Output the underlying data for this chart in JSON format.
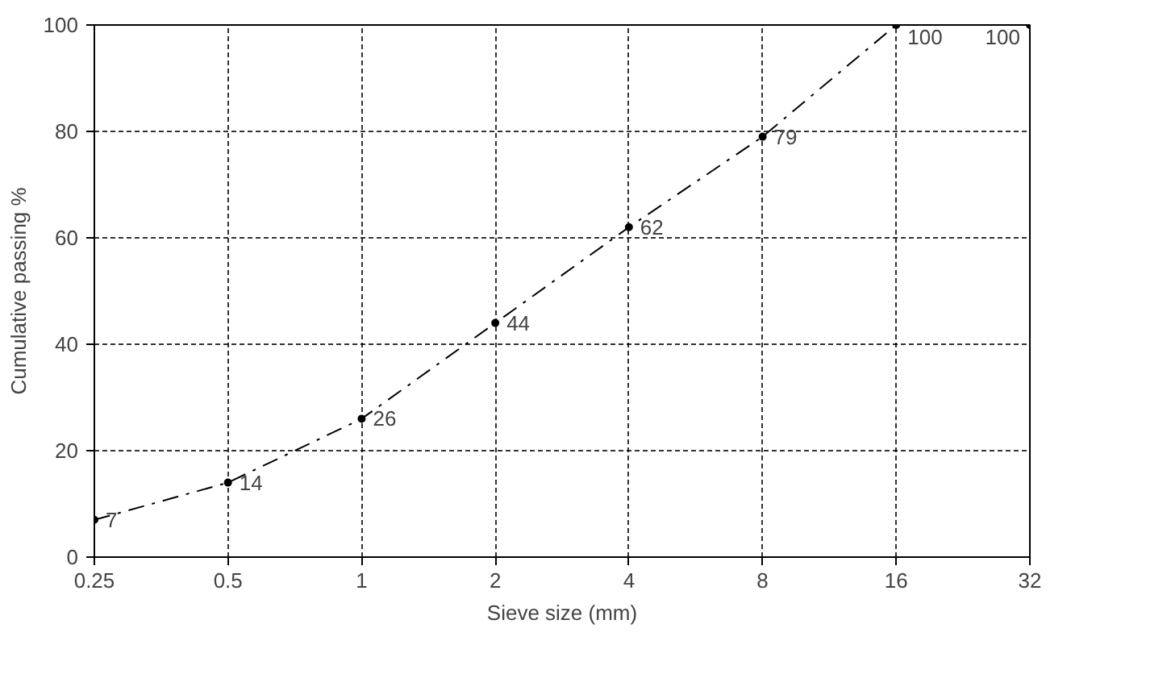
{
  "chart_data": {
    "type": "line",
    "xlabel": "Sieve size (mm)",
    "ylabel": "Cumulative passing %",
    "x": [
      0.25,
      0.5,
      1,
      2,
      4,
      8,
      16,
      32
    ],
    "series": [
      {
        "color": "#000000",
        "values": [
          7,
          14,
          26,
          44,
          62,
          79,
          100,
          100
        ]
      }
    ],
    "xlim": [
      0.25,
      32
    ],
    "ylim": [
      0,
      100
    ],
    "xticks": [
      0.25,
      0.5,
      1,
      2,
      4,
      8,
      16,
      32
    ],
    "yticks": [
      0,
      20,
      40,
      60,
      80,
      100
    ],
    "log": "x",
    "grid": true,
    "marker": "circle",
    "line_style": "dashed",
    "data_labels": true
  }
}
